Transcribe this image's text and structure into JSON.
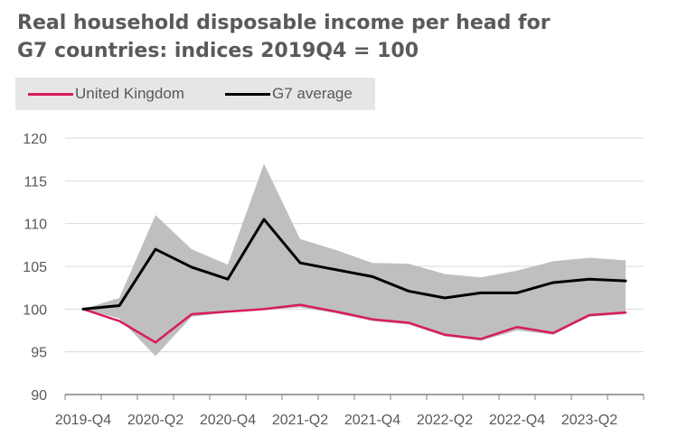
{
  "chart_data": {
    "type": "line",
    "title_lines": [
      "Real household disposable income per head for",
      "G7 countries: indices 2019Q4 = 100"
    ],
    "xlabel": "",
    "ylabel": "",
    "ylim": [
      90,
      120
    ],
    "y_ticks": [
      90,
      95,
      100,
      105,
      110,
      115,
      120
    ],
    "grid": true,
    "legend_position": "top-left",
    "x": [
      "2019-Q4",
      "2020-Q1",
      "2020-Q2",
      "2020-Q3",
      "2020-Q4",
      "2021-Q1",
      "2021-Q2",
      "2021-Q3",
      "2021-Q4",
      "2022-Q1",
      "2022-Q2",
      "2022-Q3",
      "2022-Q4",
      "2023-Q1",
      "2023-Q2",
      "2023-Q3"
    ],
    "x_tick_labels": [
      "2019-Q4",
      "2020-Q2",
      "2020-Q4",
      "2021-Q2",
      "2021-Q4",
      "2022-Q2",
      "2022-Q4",
      "2023-Q2"
    ],
    "series": [
      {
        "name": "United Kingdom",
        "color": "#d81b60",
        "values": [
          100,
          98.6,
          96.1,
          99.4,
          99.7,
          100.0,
          100.5,
          99.7,
          98.8,
          98.4,
          97.0,
          96.5,
          97.9,
          97.2,
          99.3,
          99.6
        ]
      },
      {
        "name": "G7 average",
        "color": "#000000",
        "values": [
          100,
          100.4,
          107.0,
          104.9,
          103.5,
          110.5,
          105.4,
          104.6,
          103.8,
          102.1,
          101.3,
          101.9,
          101.9,
          103.1,
          103.5,
          103.3
        ]
      }
    ],
    "range_band": {
      "color": "#bfbfbf",
      "upper": [
        100,
        101.3,
        111.0,
        107.0,
        105.2,
        117.0,
        108.2,
        106.9,
        105.4,
        105.3,
        104.1,
        103.7,
        104.5,
        105.6,
        106.0,
        105.7
      ],
      "lower": [
        100,
        98.9,
        94.5,
        99.1,
        99.6,
        99.9,
        100.2,
        99.5,
        98.6,
        98.2,
        96.8,
        96.3,
        97.5,
        97.0,
        99.1,
        99.4
      ]
    }
  }
}
